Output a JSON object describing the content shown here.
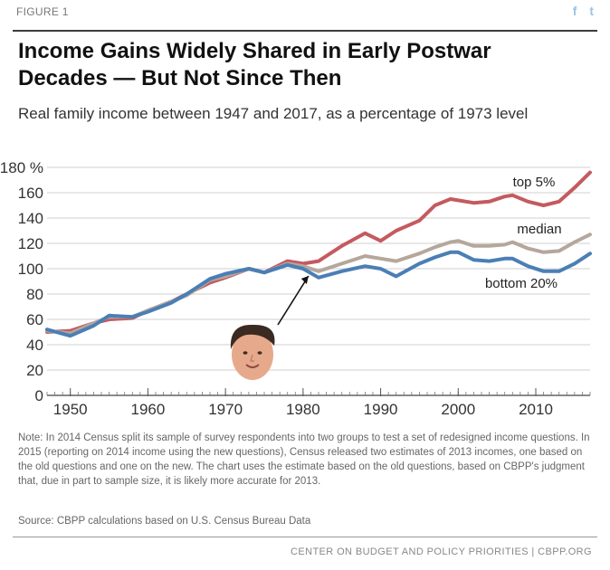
{
  "header": {
    "figure_label": "FIGURE 1",
    "social": {
      "facebook": "f",
      "twitter": "t"
    },
    "title_line1": "Income Gains Widely Shared in Early Postwar",
    "title_line2": "Decades — But Not Since Then",
    "subtitle": "Real family income between 1947 and 2017, as a percentage of 1973 level"
  },
  "chart_data": {
    "type": "line",
    "ylabel": "%",
    "ylim": [
      0,
      180
    ],
    "xlim": [
      1947,
      2017
    ],
    "yticks": [
      0,
      20,
      40,
      60,
      80,
      100,
      120,
      140,
      160,
      180
    ],
    "ytick_labels": [
      "0",
      "20",
      "40",
      "60",
      "80",
      "100",
      "120",
      "140",
      "160",
      "180 %"
    ],
    "xticks": [
      1950,
      1960,
      1970,
      1980,
      1990,
      2000,
      2010
    ],
    "xtick_labels": [
      "1950",
      "1960",
      "1970",
      "1980",
      "1990",
      "2000",
      "2010"
    ],
    "grid": true,
    "series": [
      {
        "name": "top 5%",
        "color": "#c45a5f",
        "x": [
          1947,
          1950,
          1953,
          1955,
          1958,
          1960,
          1963,
          1965,
          1968,
          1970,
          1973,
          1975,
          1978,
          1980,
          1982,
          1985,
          1988,
          1990,
          1992,
          1995,
          1997,
          1999,
          2000,
          2002,
          2004,
          2006,
          2007,
          2009,
          2011,
          2013,
          2015,
          2017
        ],
        "y": [
          50,
          51,
          57,
          60,
          61,
          67,
          74,
          80,
          89,
          93,
          100,
          97,
          106,
          104,
          106,
          118,
          128,
          122,
          130,
          138,
          150,
          155,
          154,
          152,
          153,
          157,
          158,
          153,
          150,
          153,
          164,
          176
        ]
      },
      {
        "name": "median",
        "color": "#b5a79c",
        "x": [
          1947,
          1950,
          1953,
          1955,
          1958,
          1960,
          1963,
          1965,
          1968,
          1970,
          1973,
          1975,
          1978,
          1980,
          1982,
          1985,
          1988,
          1990,
          1992,
          1995,
          1997,
          1999,
          2000,
          2002,
          2004,
          2006,
          2007,
          2009,
          2011,
          2013,
          2015,
          2017
        ],
        "y": [
          51,
          49,
          57,
          62,
          62,
          67,
          74,
          79,
          91,
          94,
          100,
          97,
          104,
          102,
          98,
          104,
          110,
          108,
          106,
          112,
          117,
          121,
          122,
          118,
          118,
          119,
          121,
          116,
          113,
          114,
          121,
          127
        ]
      },
      {
        "name": "bottom 20%",
        "color": "#4a7fb5",
        "x": [
          1947,
          1950,
          1953,
          1955,
          1958,
          1960,
          1963,
          1965,
          1968,
          1970,
          1973,
          1975,
          1978,
          1980,
          1982,
          1985,
          1988,
          1990,
          1992,
          1995,
          1997,
          1999,
          2000,
          2002,
          2004,
          2006,
          2007,
          2009,
          2011,
          2013,
          2015,
          2017
        ],
        "y": [
          52,
          47,
          55,
          63,
          62,
          66,
          73,
          80,
          92,
          96,
          100,
          97,
          103,
          100,
          93,
          98,
          102,
          100,
          94,
          104,
          109,
          113,
          113,
          107,
          106,
          108,
          108,
          102,
          98,
          98,
          104,
          112
        ]
      }
    ],
    "annotation": {
      "label": "Ronald Reagan portrait (1980)",
      "x": 1980,
      "y": 100
    }
  },
  "notes": {
    "note": "Note: In 2014 Census split its sample of survey respondents into two groups to test a set of redesigned income questions. In 2015 (reporting on 2014 income using the new questions), Census released two estimates of 2013 incomes, one based on the old questions and one on the new. The chart uses the estimate based on the old questions, based on CBPP's judgment that, due in part to sample size, it is likely more accurate for 2013.",
    "source": "Source: CBPP calculations based on U.S. Census Bureau Data"
  },
  "footer": {
    "text": "CENTER ON BUDGET AND POLICY PRIORITIES | CBPP.ORG"
  }
}
